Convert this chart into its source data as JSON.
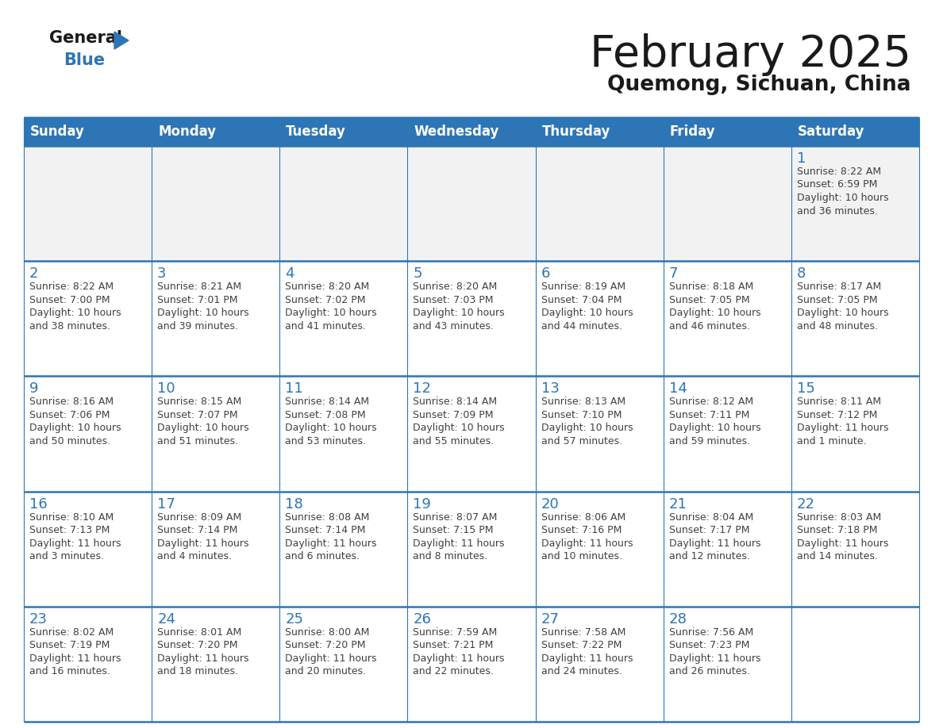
{
  "title": "February 2025",
  "subtitle": "Quemong, Sichuan, China",
  "header_bg": "#2E75B6",
  "header_text": "#FFFFFF",
  "border_color": "#2E75B6",
  "text_color": "#404040",
  "day_number_color": "#2E75B6",
  "day_headers": [
    "Sunday",
    "Monday",
    "Tuesday",
    "Wednesday",
    "Thursday",
    "Friday",
    "Saturday"
  ],
  "weeks": [
    [
      {
        "day": null,
        "info": null
      },
      {
        "day": null,
        "info": null
      },
      {
        "day": null,
        "info": null
      },
      {
        "day": null,
        "info": null
      },
      {
        "day": null,
        "info": null
      },
      {
        "day": null,
        "info": null
      },
      {
        "day": 1,
        "info": "Sunrise: 8:22 AM\nSunset: 6:59 PM\nDaylight: 10 hours\nand 36 minutes."
      }
    ],
    [
      {
        "day": 2,
        "info": "Sunrise: 8:22 AM\nSunset: 7:00 PM\nDaylight: 10 hours\nand 38 minutes."
      },
      {
        "day": 3,
        "info": "Sunrise: 8:21 AM\nSunset: 7:01 PM\nDaylight: 10 hours\nand 39 minutes."
      },
      {
        "day": 4,
        "info": "Sunrise: 8:20 AM\nSunset: 7:02 PM\nDaylight: 10 hours\nand 41 minutes."
      },
      {
        "day": 5,
        "info": "Sunrise: 8:20 AM\nSunset: 7:03 PM\nDaylight: 10 hours\nand 43 minutes."
      },
      {
        "day": 6,
        "info": "Sunrise: 8:19 AM\nSunset: 7:04 PM\nDaylight: 10 hours\nand 44 minutes."
      },
      {
        "day": 7,
        "info": "Sunrise: 8:18 AM\nSunset: 7:05 PM\nDaylight: 10 hours\nand 46 minutes."
      },
      {
        "day": 8,
        "info": "Sunrise: 8:17 AM\nSunset: 7:05 PM\nDaylight: 10 hours\nand 48 minutes."
      }
    ],
    [
      {
        "day": 9,
        "info": "Sunrise: 8:16 AM\nSunset: 7:06 PM\nDaylight: 10 hours\nand 50 minutes."
      },
      {
        "day": 10,
        "info": "Sunrise: 8:15 AM\nSunset: 7:07 PM\nDaylight: 10 hours\nand 51 minutes."
      },
      {
        "day": 11,
        "info": "Sunrise: 8:14 AM\nSunset: 7:08 PM\nDaylight: 10 hours\nand 53 minutes."
      },
      {
        "day": 12,
        "info": "Sunrise: 8:14 AM\nSunset: 7:09 PM\nDaylight: 10 hours\nand 55 minutes."
      },
      {
        "day": 13,
        "info": "Sunrise: 8:13 AM\nSunset: 7:10 PM\nDaylight: 10 hours\nand 57 minutes."
      },
      {
        "day": 14,
        "info": "Sunrise: 8:12 AM\nSunset: 7:11 PM\nDaylight: 10 hours\nand 59 minutes."
      },
      {
        "day": 15,
        "info": "Sunrise: 8:11 AM\nSunset: 7:12 PM\nDaylight: 11 hours\nand 1 minute."
      }
    ],
    [
      {
        "day": 16,
        "info": "Sunrise: 8:10 AM\nSunset: 7:13 PM\nDaylight: 11 hours\nand 3 minutes."
      },
      {
        "day": 17,
        "info": "Sunrise: 8:09 AM\nSunset: 7:14 PM\nDaylight: 11 hours\nand 4 minutes."
      },
      {
        "day": 18,
        "info": "Sunrise: 8:08 AM\nSunset: 7:14 PM\nDaylight: 11 hours\nand 6 minutes."
      },
      {
        "day": 19,
        "info": "Sunrise: 8:07 AM\nSunset: 7:15 PM\nDaylight: 11 hours\nand 8 minutes."
      },
      {
        "day": 20,
        "info": "Sunrise: 8:06 AM\nSunset: 7:16 PM\nDaylight: 11 hours\nand 10 minutes."
      },
      {
        "day": 21,
        "info": "Sunrise: 8:04 AM\nSunset: 7:17 PM\nDaylight: 11 hours\nand 12 minutes."
      },
      {
        "day": 22,
        "info": "Sunrise: 8:03 AM\nSunset: 7:18 PM\nDaylight: 11 hours\nand 14 minutes."
      }
    ],
    [
      {
        "day": 23,
        "info": "Sunrise: 8:02 AM\nSunset: 7:19 PM\nDaylight: 11 hours\nand 16 minutes."
      },
      {
        "day": 24,
        "info": "Sunrise: 8:01 AM\nSunset: 7:20 PM\nDaylight: 11 hours\nand 18 minutes."
      },
      {
        "day": 25,
        "info": "Sunrise: 8:00 AM\nSunset: 7:20 PM\nDaylight: 11 hours\nand 20 minutes."
      },
      {
        "day": 26,
        "info": "Sunrise: 7:59 AM\nSunset: 7:21 PM\nDaylight: 11 hours\nand 22 minutes."
      },
      {
        "day": 27,
        "info": "Sunrise: 7:58 AM\nSunset: 7:22 PM\nDaylight: 11 hours\nand 24 minutes."
      },
      {
        "day": 28,
        "info": "Sunrise: 7:56 AM\nSunset: 7:23 PM\nDaylight: 11 hours\nand 26 minutes."
      },
      {
        "day": null,
        "info": null
      }
    ]
  ]
}
